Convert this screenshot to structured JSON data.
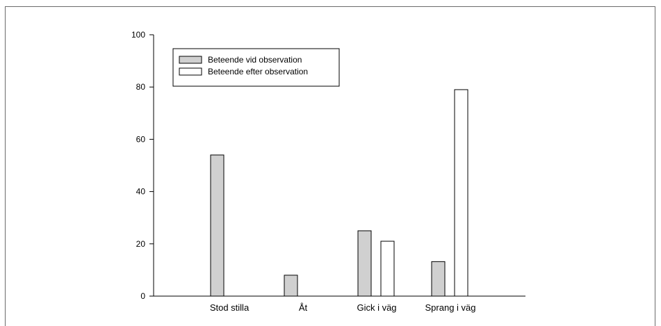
{
  "chart_data": {
    "type": "bar",
    "categories": [
      "Stod stilla",
      "Åt",
      "Gick i väg",
      "Sprang i väg"
    ],
    "series": [
      {
        "name": "Beteende vid observation",
        "values": [
          54,
          8,
          25,
          13.2
        ]
      },
      {
        "name": "Beteende efter observation",
        "values": [
          0,
          0,
          21,
          79
        ]
      }
    ],
    "ylim": [
      0,
      100
    ],
    "yticks": [
      0,
      20,
      40,
      60,
      80,
      100
    ],
    "legend_position": "top-left",
    "grid": false,
    "colors": {
      "series_0": "#d0d0d0",
      "series_1": "#ffffff",
      "stroke": "#000000"
    }
  }
}
